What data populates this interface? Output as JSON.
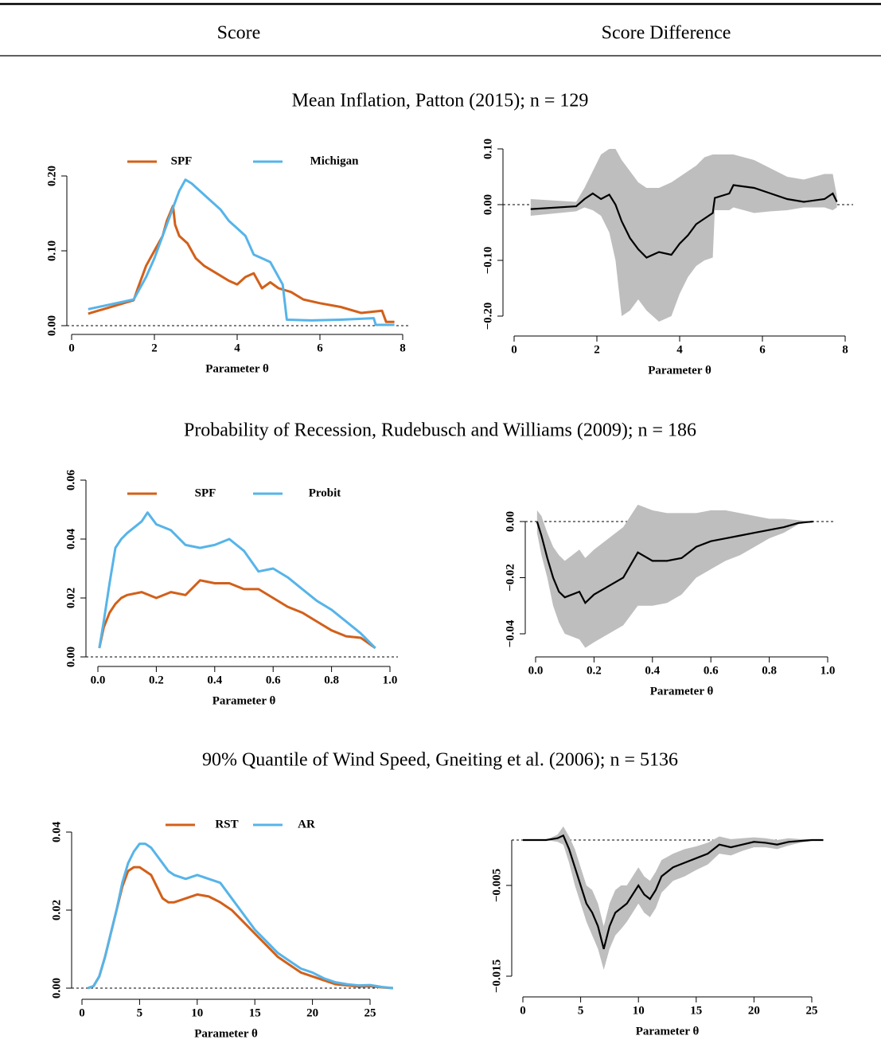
{
  "header": [
    "Score",
    "Score Difference"
  ],
  "panels": [
    {
      "title": "Mean Inflation, Patton (2015); n = 129"
    },
    {
      "title": "Probability of Recession, Rudebusch and Williams (2009); n = 186"
    },
    {
      "title": "90% Quantile of Wind Speed, Gneiting et al. (2006); n = 5136"
    }
  ],
  "chart_data": [
    {
      "type": "line",
      "xlabel": "Parameter θ",
      "legend": "top",
      "xlim": [
        0,
        8
      ],
      "ylim": [
        0,
        0.2
      ],
      "xticks": [
        0,
        2,
        4,
        6,
        8
      ],
      "yticks": [
        {
          "value": 0,
          "label": "0.00"
        },
        {
          "value": 0.1,
          "label": "0.10"
        },
        {
          "value": 0.2,
          "label": "0.20"
        }
      ],
      "series": [
        {
          "name": "SPF",
          "color": "#d2601a",
          "x": [
            0.4,
            1.5,
            1.6,
            1.8,
            2.0,
            2.2,
            2.3,
            2.45,
            2.5,
            2.6,
            2.8,
            3.0,
            3.2,
            3.5,
            3.8,
            4.0,
            4.2,
            4.4,
            4.6,
            4.8,
            5.0,
            5.3,
            5.6,
            6.0,
            6.5,
            7.0,
            7.5,
            7.6,
            7.8
          ],
          "values": [
            0.016,
            0.034,
            0.05,
            0.08,
            0.1,
            0.12,
            0.14,
            0.16,
            0.135,
            0.12,
            0.11,
            0.09,
            0.08,
            0.07,
            0.06,
            0.055,
            0.065,
            0.07,
            0.05,
            0.058,
            0.05,
            0.045,
            0.035,
            0.03,
            0.025,
            0.017,
            0.02,
            0.005,
            0.005
          ]
        },
        {
          "name": "Michigan",
          "color": "#56b4e9",
          "x": [
            0.4,
            1.5,
            1.8,
            2.0,
            2.2,
            2.4,
            2.6,
            2.75,
            2.9,
            3.0,
            3.3,
            3.6,
            3.8,
            4.0,
            4.2,
            4.4,
            4.6,
            4.8,
            5.1,
            5.2,
            5.8,
            6.5,
            7.3,
            7.35,
            7.8
          ],
          "values": [
            0.022,
            0.035,
            0.065,
            0.09,
            0.12,
            0.15,
            0.18,
            0.195,
            0.19,
            0.185,
            0.17,
            0.155,
            0.14,
            0.13,
            0.12,
            0.095,
            0.09,
            0.085,
            0.055,
            0.008,
            0.007,
            0.008,
            0.01,
            0.001,
            0.001
          ]
        }
      ]
    },
    {
      "type": "band",
      "xlabel": "Parameter θ",
      "color": "#000000",
      "band_color": "#bebebe",
      "xlim": [
        0,
        8
      ],
      "ylim": [
        -0.2,
        0.1
      ],
      "xticks": [
        0,
        2,
        4,
        6,
        8
      ],
      "yticks": [
        {
          "value": -0.2,
          "label": "−0.20"
        },
        {
          "value": -0.1,
          "label": "−0.10"
        },
        {
          "value": 0,
          "label": "0.00"
        },
        {
          "value": 0.1,
          "label": "0.10"
        }
      ],
      "x": [
        0.4,
        1.5,
        1.7,
        1.9,
        2.1,
        2.3,
        2.45,
        2.6,
        2.8,
        3.0,
        3.2,
        3.5,
        3.8,
        4.0,
        4.2,
        4.4,
        4.6,
        4.8,
        4.85,
        5.2,
        5.3,
        5.8,
        6.2,
        6.6,
        7.0,
        7.5,
        7.7,
        7.8
      ],
      "values": [
        -0.008,
        -0.003,
        0.01,
        0.02,
        0.01,
        0.018,
        0,
        -0.03,
        -0.06,
        -0.08,
        -0.095,
        -0.085,
        -0.09,
        -0.07,
        -0.055,
        -0.035,
        -0.025,
        -0.015,
        0.012,
        0.02,
        0.035,
        0.03,
        0.02,
        0.01,
        0.005,
        0.01,
        0.02,
        0.005
      ],
      "lower": [
        -0.02,
        -0.012,
        -0.005,
        -0.01,
        -0.02,
        -0.05,
        -0.1,
        -0.2,
        -0.19,
        -0.17,
        -0.19,
        -0.21,
        -0.2,
        -0.16,
        -0.13,
        -0.11,
        -0.1,
        -0.095,
        -0.01,
        -0.01,
        -0.005,
        -0.015,
        -0.012,
        -0.01,
        -0.005,
        -0.005,
        -0.01,
        -0.005
      ],
      "upper": [
        0.01,
        0.005,
        0.03,
        0.06,
        0.09,
        0.1,
        0.1,
        0.08,
        0.06,
        0.04,
        0.03,
        0.03,
        0.04,
        0.05,
        0.06,
        0.07,
        0.085,
        0.09,
        0.09,
        0.09,
        0.09,
        0.08,
        0.065,
        0.05,
        0.045,
        0.055,
        0.055,
        0.015
      ]
    },
    {
      "type": "line",
      "xlabel": "Parameter θ",
      "legend": "top",
      "xlim": [
        0,
        1
      ],
      "ylim": [
        0,
        0.06
      ],
      "xticks": [
        {
          "value": 0,
          "label": "0.0"
        },
        0.2,
        0.4,
        0.6,
        0.8,
        {
          "value": 1,
          "label": "1.0"
        }
      ],
      "yticks": [
        {
          "value": 0,
          "label": "0.00"
        },
        0.02,
        0.04,
        0.06
      ],
      "series": [
        {
          "name": "SPF",
          "color": "#d2601a",
          "x": [
            0.005,
            0.02,
            0.04,
            0.06,
            0.08,
            0.1,
            0.15,
            0.2,
            0.25,
            0.3,
            0.35,
            0.4,
            0.45,
            0.5,
            0.55,
            0.6,
            0.65,
            0.7,
            0.75,
            0.8,
            0.85,
            0.9,
            0.95
          ],
          "values": [
            0.003,
            0.01,
            0.015,
            0.018,
            0.02,
            0.021,
            0.022,
            0.02,
            0.022,
            0.021,
            0.026,
            0.025,
            0.025,
            0.023,
            0.023,
            0.02,
            0.017,
            0.015,
            0.012,
            0.009,
            0.007,
            0.0065,
            0.003
          ]
        },
        {
          "name": "Probit",
          "color": "#56b4e9",
          "x": [
            0.005,
            0.02,
            0.04,
            0.06,
            0.08,
            0.1,
            0.15,
            0.17,
            0.2,
            0.25,
            0.3,
            0.35,
            0.4,
            0.45,
            0.5,
            0.55,
            0.6,
            0.65,
            0.7,
            0.75,
            0.8,
            0.85,
            0.9,
            0.95
          ],
          "values": [
            0.003,
            0.012,
            0.025,
            0.037,
            0.04,
            0.042,
            0.046,
            0.049,
            0.045,
            0.043,
            0.038,
            0.037,
            0.038,
            0.04,
            0.036,
            0.029,
            0.03,
            0.027,
            0.023,
            0.019,
            0.016,
            0.012,
            0.008,
            0.003
          ]
        }
      ]
    },
    {
      "type": "band",
      "xlabel": "Parameter θ",
      "color": "#000000",
      "band_color": "#bebebe",
      "xlim": [
        0,
        1
      ],
      "ylim": [
        -0.04,
        0
      ],
      "xticks": [
        {
          "value": 0,
          "label": "0.0"
        },
        0.2,
        0.4,
        0.6,
        0.8,
        {
          "value": 1,
          "label": "1.0"
        }
      ],
      "yticks": [
        {
          "value": -0.04,
          "label": "−0.04"
        },
        {
          "value": -0.02,
          "label": "−0.02"
        },
        {
          "value": 0,
          "label": "0.00"
        }
      ],
      "x": [
        0.005,
        0.02,
        0.04,
        0.06,
        0.08,
        0.1,
        0.15,
        0.17,
        0.2,
        0.25,
        0.3,
        0.35,
        0.4,
        0.45,
        0.5,
        0.55,
        0.6,
        0.65,
        0.7,
        0.75,
        0.8,
        0.85,
        0.9,
        0.95
      ],
      "values": [
        0,
        -0.005,
        -0.013,
        -0.02,
        -0.025,
        -0.027,
        -0.025,
        -0.029,
        -0.026,
        -0.023,
        -0.02,
        -0.011,
        -0.014,
        -0.014,
        -0.013,
        -0.009,
        -0.007,
        -0.006,
        -0.005,
        -0.004,
        -0.003,
        -0.002,
        -0.0005,
        0
      ],
      "lower": [
        -0.004,
        -0.012,
        -0.02,
        -0.03,
        -0.036,
        -0.04,
        -0.042,
        -0.045,
        -0.043,
        -0.04,
        -0.037,
        -0.03,
        -0.03,
        -0.029,
        -0.026,
        -0.02,
        -0.017,
        -0.014,
        -0.012,
        -0.009,
        -0.006,
        -0.004,
        -0.001,
        0
      ],
      "upper": [
        0.004,
        0.002,
        -0.004,
        -0.009,
        -0.012,
        -0.014,
        -0.01,
        -0.013,
        -0.01,
        -0.006,
        -0.002,
        0.006,
        0.004,
        0.003,
        0.003,
        0.003,
        0.004,
        0.004,
        0.003,
        0.002,
        0.001,
        0.001,
        0.0005,
        0
      ]
    },
    {
      "type": "line",
      "xlabel": "Parameter θ",
      "legend": "top",
      "xlim": [
        0,
        25
      ],
      "ylim": [
        0,
        0.04
      ],
      "xticks": [
        0,
        5,
        10,
        15,
        20,
        25
      ],
      "yticks": [
        {
          "value": 0,
          "label": "0.00"
        },
        0.02,
        0.04
      ],
      "x": [
        0.5,
        1,
        1.5,
        2,
        2.5,
        3,
        3.5,
        4,
        4.5,
        5,
        5.5,
        6,
        6.5,
        7,
        7.5,
        8,
        9,
        10,
        11,
        12,
        13,
        14,
        15,
        16,
        17,
        18,
        19,
        20,
        21,
        22,
        23,
        24,
        25,
        26,
        27
      ],
      "series": [
        {
          "name": "RST",
          "color": "#d2601a",
          "values": [
            0,
            0.0005,
            0.003,
            0.008,
            0.014,
            0.02,
            0.026,
            0.03,
            0.031,
            0.031,
            0.03,
            0.029,
            0.026,
            0.023,
            0.022,
            0.022,
            0.023,
            0.024,
            0.0235,
            0.022,
            0.02,
            0.017,
            0.014,
            0.011,
            0.008,
            0.006,
            0.004,
            0.003,
            0.002,
            0.001,
            0.0007,
            0.0004,
            0.0005,
            0.0002,
            0
          ]
        },
        {
          "name": "AR",
          "color": "#56b4e9",
          "values": [
            0,
            0.0005,
            0.003,
            0.008,
            0.014,
            0.02,
            0.027,
            0.032,
            0.035,
            0.037,
            0.037,
            0.036,
            0.034,
            0.032,
            0.03,
            0.029,
            0.028,
            0.029,
            0.028,
            0.027,
            0.023,
            0.019,
            0.015,
            0.012,
            0.009,
            0.007,
            0.005,
            0.004,
            0.0025,
            0.0015,
            0.001,
            0.0007,
            0.0008,
            0.0003,
            0
          ]
        }
      ]
    },
    {
      "type": "band",
      "xlabel": "Parameter θ",
      "color": "#000000",
      "band_color": "#bebebe",
      "xlim": [
        0,
        25
      ],
      "ylim": [
        -0.015,
        0
      ],
      "xticks": [
        0,
        5,
        10,
        15,
        20,
        25
      ],
      "yticks": [
        {
          "value": -0.015,
          "label": "−0.015"
        },
        {
          "value": -0.005,
          "label": "−0.005"
        }
      ],
      "x": [
        0,
        2,
        3,
        3.5,
        4,
        4.5,
        5,
        5.5,
        6,
        6.5,
        7,
        7.5,
        8,
        8.5,
        9,
        9.5,
        10,
        10.5,
        11,
        11.5,
        12,
        13,
        14,
        15,
        16,
        17,
        18,
        19,
        20,
        21,
        22,
        23,
        24,
        25,
        26
      ],
      "values": [
        0,
        0,
        0.0002,
        0.0005,
        -0.001,
        -0.003,
        -0.005,
        -0.007,
        -0.008,
        -0.0095,
        -0.012,
        -0.0095,
        -0.008,
        -0.0075,
        -0.007,
        -0.006,
        -0.005,
        -0.006,
        -0.0065,
        -0.0055,
        -0.004,
        -0.003,
        -0.0025,
        -0.002,
        -0.0015,
        -0.0005,
        -0.0008,
        -0.0005,
        -0.0002,
        -0.0003,
        -0.0005,
        -0.0002,
        -0.0001,
        0,
        0
      ],
      "lower": [
        0,
        0,
        -0.0002,
        -0.0005,
        -0.0025,
        -0.005,
        -0.007,
        -0.009,
        -0.0105,
        -0.012,
        -0.0143,
        -0.012,
        -0.0105,
        -0.0098,
        -0.009,
        -0.008,
        -0.007,
        -0.008,
        -0.0085,
        -0.0075,
        -0.0058,
        -0.0045,
        -0.004,
        -0.0033,
        -0.0027,
        -0.0015,
        -0.0017,
        -0.0012,
        -0.0008,
        -0.0008,
        -0.001,
        -0.0006,
        -0.0003,
        -0.0001,
        0
      ],
      "upper": [
        0,
        0,
        0.0006,
        0.0015,
        0.0004,
        -0.001,
        -0.003,
        -0.005,
        -0.0055,
        -0.007,
        -0.0095,
        -0.007,
        -0.0055,
        -0.005,
        -0.005,
        -0.004,
        -0.003,
        -0.004,
        -0.0045,
        -0.0035,
        -0.0022,
        -0.0015,
        -0.001,
        -0.0007,
        -0.0003,
        0.0004,
        0.0001,
        0.0002,
        0.0003,
        0.0002,
        0,
        0.0002,
        0.0001,
        0.0001,
        0
      ]
    }
  ]
}
